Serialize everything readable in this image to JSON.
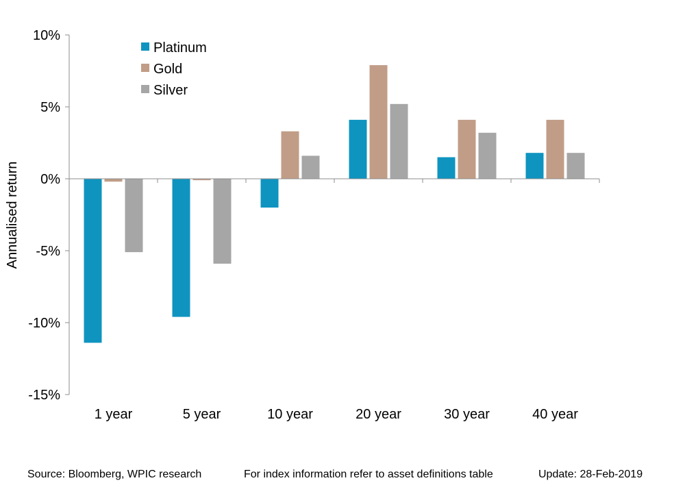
{
  "chart_data": {
    "type": "bar",
    "title": "",
    "xlabel": "",
    "ylabel": "Annualised return",
    "ylim": [
      -15,
      10
    ],
    "yticks": [
      10,
      5,
      0,
      -5,
      -10,
      -15
    ],
    "ytick_labels": [
      "10%",
      "5%",
      "0%",
      "-5%",
      "-10%",
      "-15%"
    ],
    "categories": [
      "1 year",
      "5 year",
      "10 year",
      "20 year",
      "30 year",
      "40 year"
    ],
    "series": [
      {
        "name": "Platinum",
        "color": "#0f94c0",
        "values": [
          -11.4,
          -9.6,
          -2.0,
          4.1,
          1.5,
          1.8
        ]
      },
      {
        "name": "Gold",
        "color": "#c19d87",
        "values": [
          -0.2,
          -0.1,
          3.3,
          7.9,
          4.1,
          4.1
        ]
      },
      {
        "name": "Silver",
        "color": "#a6a6a6",
        "values": [
          -5.1,
          -5.9,
          1.6,
          5.2,
          3.2,
          1.8
        ]
      }
    ],
    "legend_position": "top-left",
    "grid": false
  },
  "footer": {
    "source": "Source: Bloomberg, WPIC research",
    "index_note": "For index information refer to asset definitions table",
    "update": "Update: 28-Feb-2019"
  }
}
